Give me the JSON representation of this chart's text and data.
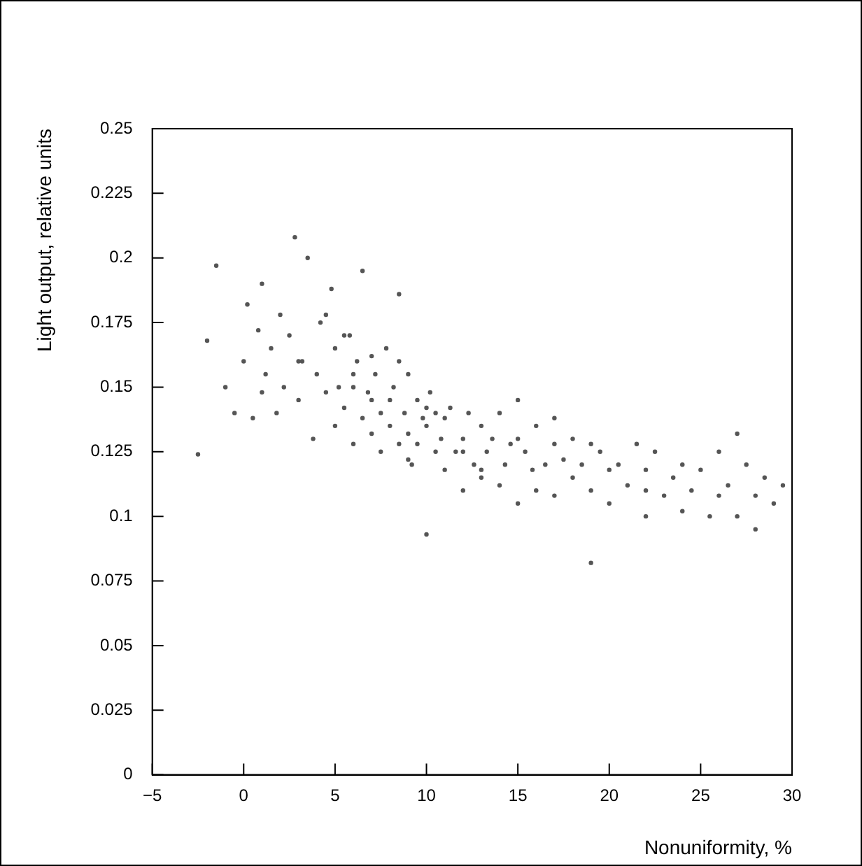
{
  "chart_data": {
    "type": "scatter",
    "xlabel": "Nonuniformity, %",
    "ylabel": "Light output, relative units",
    "xlim": [
      -5,
      30
    ],
    "ylim": [
      0,
      0.25
    ],
    "xticks": [
      {
        "value": -5,
        "label": "−5"
      },
      0,
      5,
      10,
      15,
      20,
      25,
      30
    ],
    "yticks": [
      0,
      0.025,
      0.05,
      0.075,
      0.1,
      0.125,
      0.15,
      0.175,
      0.2,
      0.225,
      0.25
    ],
    "grid": false,
    "legend": false,
    "marker": "circle",
    "series": [
      {
        "color": "#555555",
        "x": [
          -2.5,
          -2,
          -1.5,
          -1,
          -0.5,
          0,
          0.2,
          0.5,
          0.8,
          1,
          1.2,
          1.5,
          1.8,
          2,
          2.2,
          2.5,
          2.8,
          3,
          3.2,
          3.5,
          3.8,
          4,
          4.2,
          4.5,
          4.8,
          5,
          5,
          5.2,
          5.5,
          5.8,
          6,
          6,
          6.2,
          6.5,
          6.5,
          6.8,
          7,
          7,
          7.2,
          7.5,
          7.5,
          7.8,
          8,
          8,
          8.2,
          8.5,
          8.5,
          8.8,
          9,
          9,
          9.2,
          9.5,
          9.5,
          9.8,
          10,
          10,
          10.2,
          10.5,
          10.5,
          10.8,
          11,
          11,
          11.3,
          11.6,
          12,
          12,
          12.3,
          12.6,
          13,
          13,
          13.3,
          13.6,
          14,
          14,
          14.3,
          14.6,
          15,
          15,
          15.4,
          15.8,
          16,
          16,
          16.5,
          17,
          17,
          17.5,
          18,
          18,
          18.5,
          19,
          19,
          19.5,
          20,
          20,
          20.5,
          21,
          21.5,
          22,
          22,
          22.5,
          23,
          23.5,
          24,
          24,
          24.5,
          25,
          25.5,
          26,
          26,
          26.5,
          27,
          27.5,
          28,
          28,
          28.5,
          29,
          29.5,
          3,
          4.5,
          6,
          7,
          8.5,
          10,
          12,
          15,
          17,
          19,
          22,
          27,
          1,
          5.5,
          9,
          13
        ],
        "values": [
          0.124,
          0.168,
          0.197,
          0.15,
          0.14,
          0.16,
          0.182,
          0.138,
          0.172,
          0.19,
          0.155,
          0.165,
          0.14,
          0.178,
          0.15,
          0.17,
          0.208,
          0.145,
          0.16,
          0.2,
          0.13,
          0.155,
          0.175,
          0.148,
          0.188,
          0.135,
          0.165,
          0.15,
          0.142,
          0.17,
          0.128,
          0.155,
          0.16,
          0.195,
          0.138,
          0.148,
          0.132,
          0.162,
          0.155,
          0.14,
          0.125,
          0.165,
          0.145,
          0.135,
          0.15,
          0.186,
          0.128,
          0.14,
          0.132,
          0.155,
          0.12,
          0.145,
          0.128,
          0.138,
          0.093,
          0.135,
          0.148,
          0.125,
          0.14,
          0.13,
          0.118,
          0.138,
          0.142,
          0.125,
          0.11,
          0.13,
          0.14,
          0.12,
          0.135,
          0.115,
          0.125,
          0.13,
          0.112,
          0.14,
          0.12,
          0.128,
          0.105,
          0.13,
          0.125,
          0.118,
          0.11,
          0.135,
          0.12,
          0.128,
          0.108,
          0.122,
          0.115,
          0.13,
          0.12,
          0.082,
          0.11,
          0.125,
          0.118,
          0.105,
          0.12,
          0.112,
          0.128,
          0.1,
          0.118,
          0.125,
          0.108,
          0.115,
          0.12,
          0.102,
          0.11,
          0.118,
          0.1,
          0.125,
          0.108,
          0.112,
          0.1,
          0.12,
          0.108,
          0.095,
          0.115,
          0.105,
          0.112,
          0.16,
          0.178,
          0.15,
          0.145,
          0.16,
          0.142,
          0.125,
          0.145,
          0.138,
          0.128,
          0.11,
          0.132,
          0.148,
          0.17,
          0.122,
          0.118
        ]
      }
    ]
  }
}
